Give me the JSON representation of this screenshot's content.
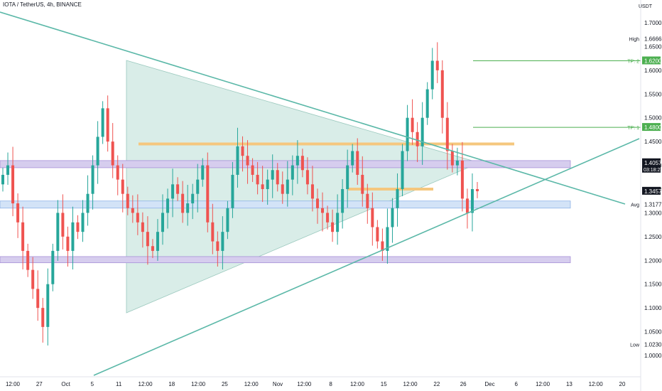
{
  "header": {
    "title": "IOTA / TetherUS, 4h, BINANCE"
  },
  "price_axis": {
    "currency": "USDT"
  },
  "colors": {
    "up": "#26a69a",
    "down": "#ef5350",
    "trendline": "#5bb8a8",
    "triangle_fill": "#d9ede8",
    "purple_zone": "#d6cdee",
    "blue_zone": "#d3e3f7",
    "orange_line": "#f5c77e",
    "tp_label": "#4caf50",
    "price_label": "#131722"
  },
  "chart_data": {
    "type": "candlestick",
    "title": "IOTA / TetherUS, 4h, BINANCE",
    "ylim": [
      0.97,
      1.73
    ],
    "y_ticks": [
      1.7,
      1.65,
      1.6,
      1.55,
      1.5,
      1.45,
      1.4,
      1.35,
      1.3,
      1.25,
      1.2,
      1.15,
      1.1,
      1.05,
      1.0
    ],
    "x_ticks": [
      "12:00",
      "27",
      "Oct",
      "5",
      "11",
      "12:00",
      "18",
      "12:00",
      "25",
      "12:00",
      "Nov",
      "12:00",
      "8",
      "12:00",
      "15",
      "12:00",
      "22",
      "26",
      "Dec",
      "6",
      "12:00",
      "13",
      "12:00",
      "20"
    ],
    "price_labels": [
      {
        "label": "High",
        "value": "1.6666"
      },
      {
        "label": "TP: 2",
        "value": "1.6200"
      },
      {
        "label": "TP: 1",
        "value": "1.4800"
      },
      {
        "label": "",
        "value": "1.4057",
        "sub": "03:18:22"
      },
      {
        "label": "",
        "value": "1.3457"
      },
      {
        "label": "Avg",
        "value": "1.3177"
      },
      {
        "label": "Low",
        "value": "1.0230"
      }
    ],
    "zones": [
      {
        "type": "purple",
        "from": 1.395,
        "to": 1.41
      },
      {
        "type": "blue",
        "from": 1.31,
        "to": 1.325
      },
      {
        "type": "purple",
        "from": 1.195,
        "to": 1.208
      }
    ],
    "levels": [
      {
        "type": "orange",
        "value": 1.445
      },
      {
        "type": "orange",
        "value": 1.35
      },
      {
        "type": "tp",
        "value": 1.62
      },
      {
        "type": "tp",
        "value": 1.48
      }
    ],
    "candles_close": [
      1.38,
      1.4,
      1.32,
      1.28,
      1.22,
      1.18,
      1.14,
      1.1,
      1.06,
      1.15,
      1.22,
      1.3,
      1.25,
      1.22,
      1.28,
      1.26,
      1.3,
      1.34,
      1.4,
      1.46,
      1.52,
      1.45,
      1.4,
      1.37,
      1.34,
      1.31,
      1.3,
      1.28,
      1.26,
      1.23,
      1.22,
      1.26,
      1.3,
      1.33,
      1.36,
      1.34,
      1.3,
      1.32,
      1.34,
      1.37,
      1.4,
      1.28,
      1.24,
      1.22,
      1.26,
      1.31,
      1.38,
      1.44,
      1.42,
      1.4,
      1.38,
      1.36,
      1.35,
      1.37,
      1.39,
      1.36,
      1.34,
      1.37,
      1.4,
      1.42,
      1.39,
      1.36,
      1.33,
      1.31,
      1.3,
      1.28,
      1.26,
      1.3,
      1.35,
      1.4,
      1.43,
      1.38,
      1.34,
      1.31,
      1.27,
      1.24,
      1.22,
      1.27,
      1.31,
      1.35,
      1.43,
      1.5,
      1.47,
      1.44,
      1.5,
      1.56,
      1.62,
      1.6,
      1.5,
      1.43,
      1.4,
      1.41,
      1.33,
      1.3,
      1.35,
      1.3457
    ]
  }
}
